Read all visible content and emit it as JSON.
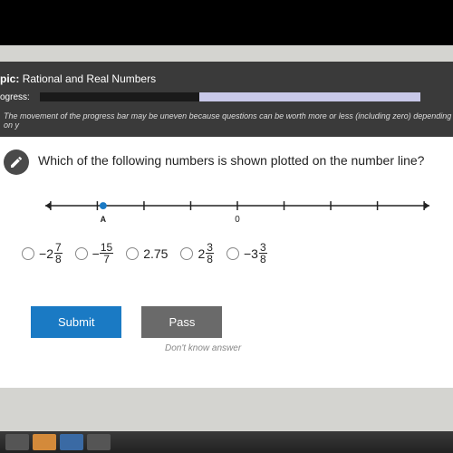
{
  "header": {
    "topic_label": "pic:",
    "topic_value": "Rational and Real Numbers",
    "progress_label": "ogress:",
    "progress_percent": 42,
    "hint": "The movement of the progress bar may be uneven because questions can be worth more or less (including zero) depending on y"
  },
  "question": {
    "text": "Which of the following numbers is shown plotted on the number line?"
  },
  "number_line": {
    "min": -4,
    "max": 4,
    "tick_step": 1,
    "zero_label": "0",
    "point_label": "A",
    "point_value": -2.875,
    "line_color": "#222222",
    "point_color": "#1a7ac4"
  },
  "options": [
    {
      "type": "mixed",
      "sign": "−",
      "whole": "2",
      "num": "7",
      "den": "8"
    },
    {
      "type": "frac",
      "sign": "−",
      "num": "15",
      "den": "7"
    },
    {
      "type": "plain",
      "text": "2.75"
    },
    {
      "type": "mixed",
      "sign": "",
      "whole": "2",
      "num": "3",
      "den": "8"
    },
    {
      "type": "mixed",
      "sign": "−",
      "whole": "3",
      "num": "3",
      "den": "8"
    }
  ],
  "buttons": {
    "submit": "Submit",
    "pass": "Pass",
    "dont_know": "Don't know answer"
  },
  "colors": {
    "submit_bg": "#1a7ac4",
    "pass_bg": "#6a6a6a",
    "header_bg": "#3a3a3a"
  }
}
